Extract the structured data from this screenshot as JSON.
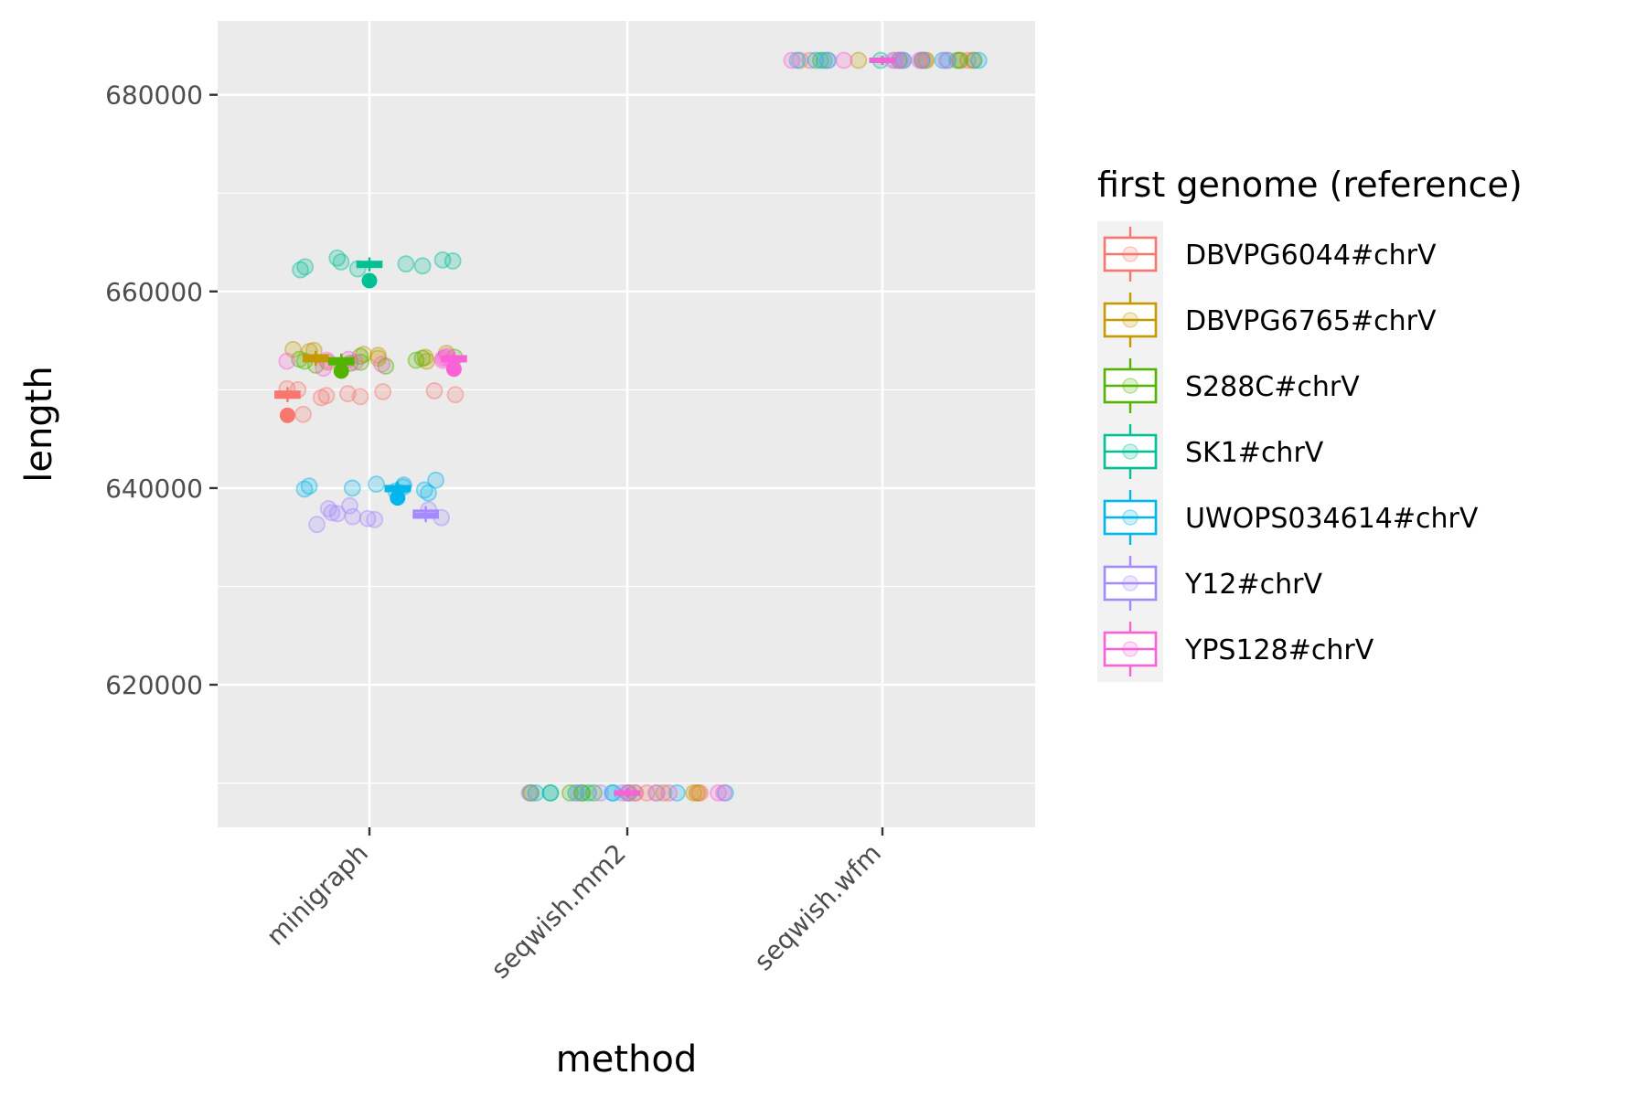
{
  "chart_data": {
    "type": "boxplot-jitter",
    "xlabel": "method",
    "ylabel": "length",
    "categories": [
      "minigraph",
      "seqwish.mm2",
      "seqwish.wfm"
    ],
    "y_ticks": [
      {
        "value": 620000,
        "label": "620000"
      },
      {
        "value": 640000,
        "label": "640000"
      },
      {
        "value": 660000,
        "label": "660000"
      },
      {
        "value": 680000,
        "label": "680000"
      }
    ],
    "ylim": [
      605500,
      687500
    ],
    "grid": true,
    "legend": {
      "title": "first genome (reference)",
      "position": "right"
    },
    "series": [
      {
        "name": "DBVPG6044#chrV",
        "color": "#F8766D",
        "boxes": [
          {
            "category": "minigraph",
            "offset": -0.32,
            "median": 649500,
            "q1": 649200,
            "q3": 649800,
            "outlier": 647400
          },
          {
            "category": "seqwish.mm2",
            "offset": 0.0,
            "median": 609000,
            "q1": 609000,
            "q3": 609000
          },
          {
            "category": "seqwish.wfm",
            "offset": 0.0,
            "median": 683500,
            "q1": 683500,
            "q3": 683500
          }
        ],
        "points": [
          {
            "category": "minigraph",
            "values": [
              649400,
              650000,
              649800,
              649200,
              649600,
              650100,
              649300,
              647500,
              649900,
              649500
            ]
          }
        ]
      },
      {
        "name": "DBVPG6765#chrV",
        "color": "#C49A00",
        "boxes": [
          {
            "category": "minigraph",
            "offset": -0.21,
            "median": 653200,
            "q1": 652900,
            "q3": 653500
          },
          {
            "category": "seqwish.mm2",
            "offset": 0.0,
            "median": 609000,
            "q1": 609000,
            "q3": 609000
          },
          {
            "category": "seqwish.wfm",
            "offset": 0.0,
            "median": 683500,
            "q1": 683500,
            "q3": 683500
          }
        ],
        "points": [
          {
            "category": "minigraph",
            "values": [
              653500,
              654000,
              653200,
              652800,
              653700,
              653300,
              653900,
              652900,
              653600,
              654100
            ]
          }
        ]
      },
      {
        "name": "S288C#chrV",
        "color": "#53B400",
        "boxes": [
          {
            "category": "minigraph",
            "offset": -0.11,
            "median": 652900,
            "q1": 652600,
            "q3": 653200,
            "outlier": 651900
          },
          {
            "category": "seqwish.mm2",
            "offset": 0.0,
            "median": 609000,
            "q1": 609000,
            "q3": 609000
          },
          {
            "category": "seqwish.wfm",
            "offset": 0.0,
            "median": 683500,
            "q1": 683500,
            "q3": 683500
          }
        ],
        "points": [
          {
            "category": "minigraph",
            "values": [
              653300,
              652800,
              653100,
              652500,
              653400,
              652900,
              653000,
              652400,
              653200,
              652700
            ]
          }
        ]
      },
      {
        "name": "SK1#chrV",
        "color": "#00C094",
        "boxes": [
          {
            "category": "minigraph",
            "offset": 0.0,
            "median": 662700,
            "q1": 662500,
            "q3": 663000,
            "outlier": 661100
          },
          {
            "category": "seqwish.mm2",
            "offset": 0.0,
            "median": 609000,
            "q1": 609000,
            "q3": 609000
          },
          {
            "category": "seqwish.wfm",
            "offset": 0.0,
            "median": 683500,
            "q1": 683500,
            "q3": 683500
          }
        ],
        "points": [
          {
            "category": "minigraph",
            "values": [
              663000,
              663400,
              662500,
              663100,
              662200,
              663200,
              662600,
              662300,
              662800
            ]
          }
        ]
      },
      {
        "name": "UWOPS034614#chrV",
        "color": "#00B6EB",
        "boxes": [
          {
            "category": "minigraph",
            "offset": 0.11,
            "median": 640000,
            "q1": 639700,
            "q3": 640200,
            "outlier": 639000
          },
          {
            "category": "seqwish.mm2",
            "offset": 0.0,
            "median": 609000,
            "q1": 609000,
            "q3": 609000
          },
          {
            "category": "seqwish.wfm",
            "offset": 0.0,
            "median": 683500,
            "q1": 683500,
            "q3": 683500
          }
        ],
        "points": [
          {
            "category": "minigraph",
            "values": [
              640100,
              640800,
              639800,
              640300,
              639500,
              640000,
              640200,
              639900,
              640400,
              639700
            ]
          }
        ]
      },
      {
        "name": "Y12#chrV",
        "color": "#A58AFF",
        "boxes": [
          {
            "category": "minigraph",
            "offset": 0.22,
            "median": 637300,
            "q1": 637000,
            "q3": 637700
          },
          {
            "category": "seqwish.mm2",
            "offset": 0.0,
            "median": 609000,
            "q1": 609000,
            "q3": 609000
          },
          {
            "category": "seqwish.wfm",
            "offset": 0.0,
            "median": 683500,
            "q1": 683500,
            "q3": 683500
          }
        ],
        "points": [
          {
            "category": "minigraph",
            "values": [
              638200,
              637500,
              636900,
              637800,
              637000,
              636300,
              637400,
              636800,
              637900,
              637100
            ]
          }
        ]
      },
      {
        "name": "YPS128#chrV",
        "color": "#FB61D7",
        "boxes": [
          {
            "category": "minigraph",
            "offset": 0.33,
            "median": 653100,
            "q1": 652900,
            "q3": 653400,
            "outlier": 652100
          },
          {
            "category": "seqwish.mm2",
            "offset": 0.0,
            "median": 609000,
            "q1": 609000,
            "q3": 609000
          },
          {
            "category": "seqwish.wfm",
            "offset": 0.0,
            "median": 683500,
            "q1": 683500,
            "q3": 683500
          }
        ],
        "points": [
          {
            "category": "minigraph",
            "values": [
              653100,
              652800,
              653300,
              652200,
              653000,
              653400,
              652600,
              653200,
              652900,
              653000
            ]
          }
        ]
      }
    ]
  }
}
